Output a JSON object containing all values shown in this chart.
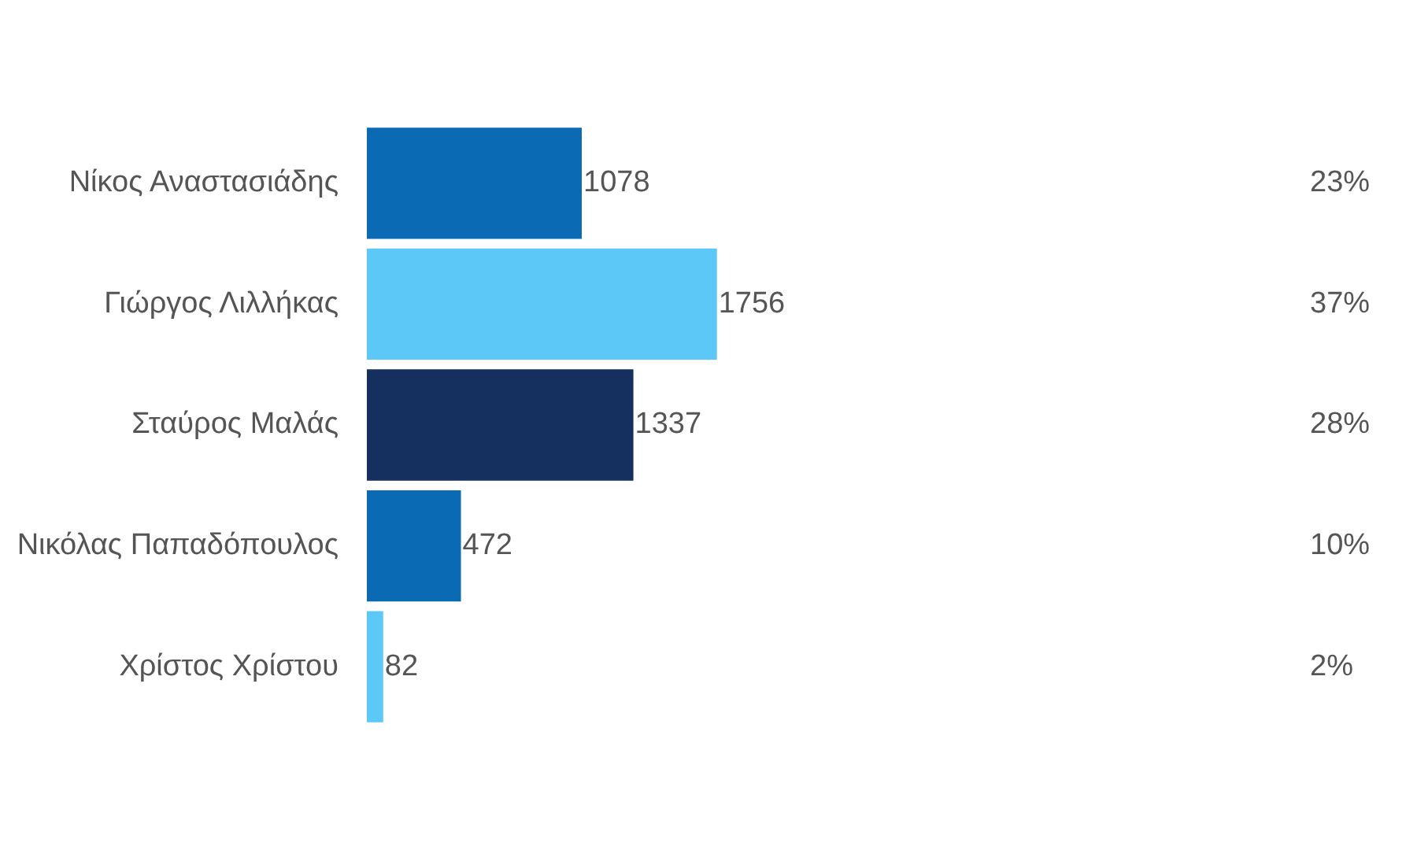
{
  "chart_data": {
    "type": "bar",
    "orientation": "horizontal",
    "tick_labels": "y",
    "legend": false,
    "data_labels": true,
    "categories": [
      "Νίκος Αναστασιάδης",
      "Γιώργος Λιλλήκας",
      "Σταύρος Μαλάς",
      "Νικόλας Παπαδόπουλος",
      "Χρίστος Χρίστου"
    ],
    "values": [
      1078,
      1756,
      1337,
      472,
      82
    ],
    "colors": [
      "#0a6ab4",
      "#5bc8f7",
      "#15305f",
      "#0a6ab4",
      "#5bc8f7"
    ],
    "annotations": [
      "23%",
      "37%",
      "28%",
      "10%",
      "2%"
    ]
  }
}
